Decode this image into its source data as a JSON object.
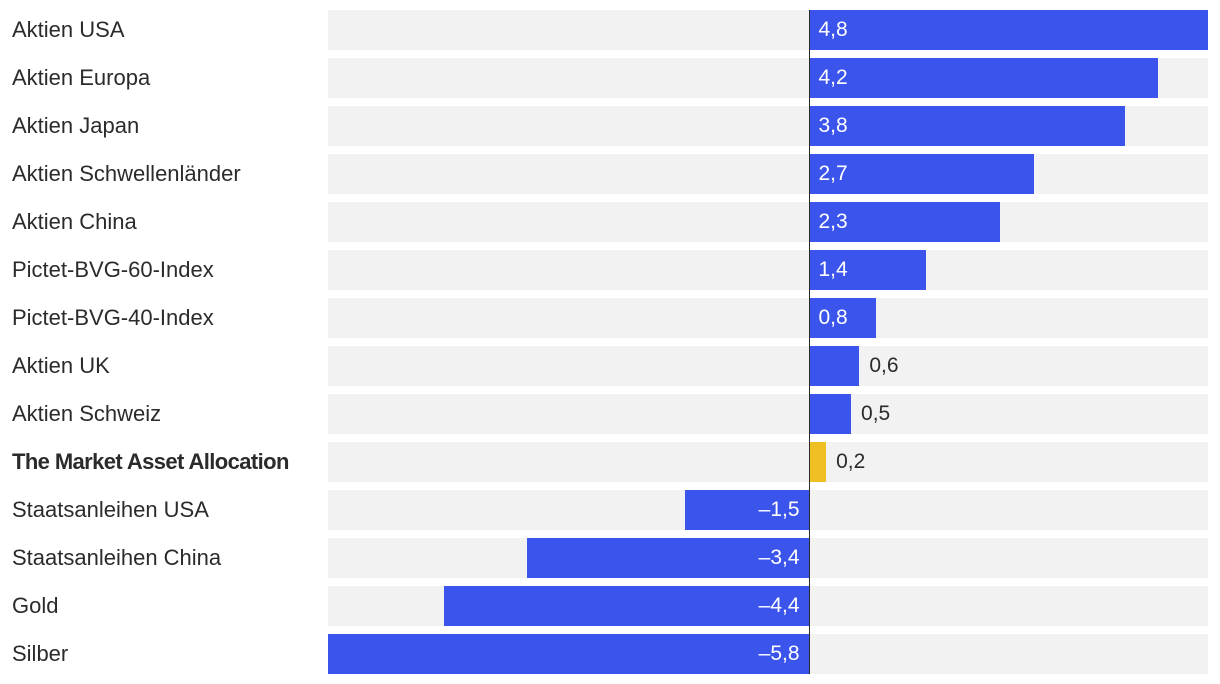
{
  "chart_data": {
    "type": "bar",
    "orientation": "horizontal",
    "title": "",
    "xlabel": "",
    "ylabel": "",
    "xlim": [
      -5.8,
      4.8
    ],
    "grid": false,
    "categories": [
      "Aktien USA",
      "Aktien Europa",
      "Aktien Japan",
      "Aktien Schwellenländer",
      "Aktien China",
      "Pictet-BVG-60-Index",
      "Pictet-BVG-40-Index",
      "Aktien UK",
      "Aktien Schweiz",
      "The Market Asset Allocation",
      "Staatsanleihen USA",
      "Staatsanleihen China",
      "Gold",
      "Silber"
    ],
    "values": [
      4.8,
      4.2,
      3.8,
      2.7,
      2.3,
      1.4,
      0.8,
      0.6,
      0.5,
      0.2,
      -1.5,
      -3.4,
      -4.4,
      -5.8
    ],
    "value_labels": [
      "4,8",
      "4,2",
      "3,8",
      "2,7",
      "2,3",
      "1,4",
      "0,8",
      "0,6",
      "0,5",
      "0,2",
      "–1,5",
      "–3,4",
      "–4,4",
      "–5,8"
    ],
    "highlight_index": 9,
    "colors": {
      "bar": "#3b55ec",
      "highlight": "#f0bf24",
      "track": "#f2f2f2",
      "axis": "#2b2b2b"
    }
  }
}
